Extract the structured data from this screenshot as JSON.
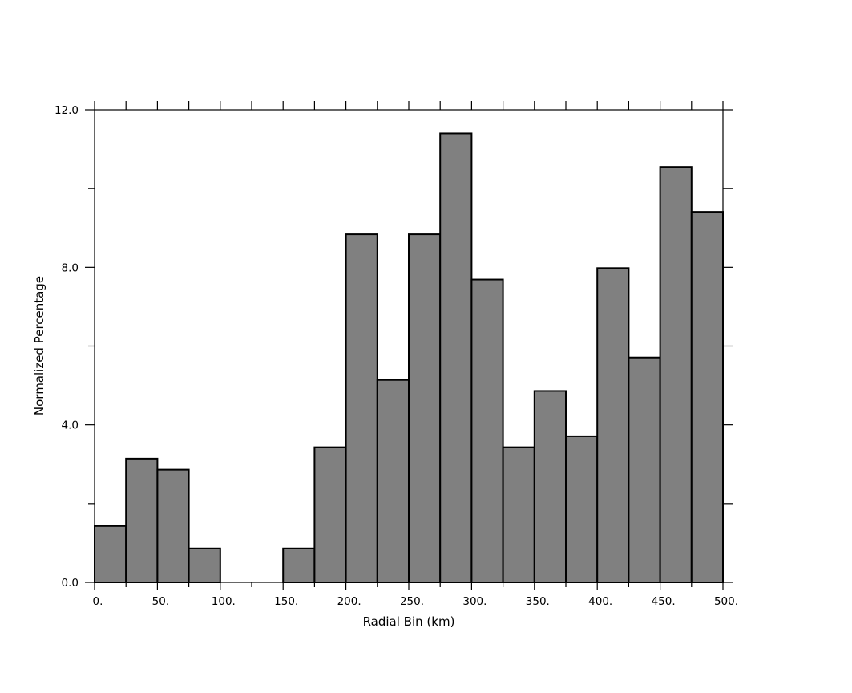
{
  "chart_data": {
    "type": "bar",
    "title": "",
    "xlabel": "Radial Bin (km)",
    "ylabel": "Normalized Percentage",
    "xlim": [
      0,
      500
    ],
    "ylim": [
      0,
      12
    ],
    "bin_width": 25,
    "x_tick_labels": [
      "0.",
      "50.",
      "100.",
      "150.",
      "200.",
      "250.",
      "300.",
      "350.",
      "400.",
      "450.",
      "500."
    ],
    "y_tick_labels": [
      "0.0",
      "4.0",
      "8.0",
      "12.0"
    ],
    "bins": [
      {
        "start": 0,
        "end": 25,
        "value": 1.43
      },
      {
        "start": 25,
        "end": 50,
        "value": 3.14
      },
      {
        "start": 50,
        "end": 75,
        "value": 2.86
      },
      {
        "start": 75,
        "end": 100,
        "value": 0.86
      },
      {
        "start": 100,
        "end": 125,
        "value": 0.0
      },
      {
        "start": 125,
        "end": 150,
        "value": 0.0
      },
      {
        "start": 150,
        "end": 175,
        "value": 0.86
      },
      {
        "start": 175,
        "end": 200,
        "value": 3.43
      },
      {
        "start": 200,
        "end": 225,
        "value": 8.84
      },
      {
        "start": 225,
        "end": 250,
        "value": 5.14
      },
      {
        "start": 250,
        "end": 275,
        "value": 8.84
      },
      {
        "start": 275,
        "end": 300,
        "value": 11.4
      },
      {
        "start": 300,
        "end": 325,
        "value": 7.69
      },
      {
        "start": 325,
        "end": 350,
        "value": 3.43
      },
      {
        "start": 350,
        "end": 375,
        "value": 4.86
      },
      {
        "start": 375,
        "end": 400,
        "value": 3.71
      },
      {
        "start": 400,
        "end": 425,
        "value": 7.98
      },
      {
        "start": 425,
        "end": 450,
        "value": 5.71
      },
      {
        "start": 450,
        "end": 475,
        "value": 10.55
      },
      {
        "start": 475,
        "end": 500,
        "value": 9.41
      }
    ],
    "bar_color": "#808080",
    "bar_edge_color": "#000000",
    "grid": false,
    "legend": "none"
  }
}
